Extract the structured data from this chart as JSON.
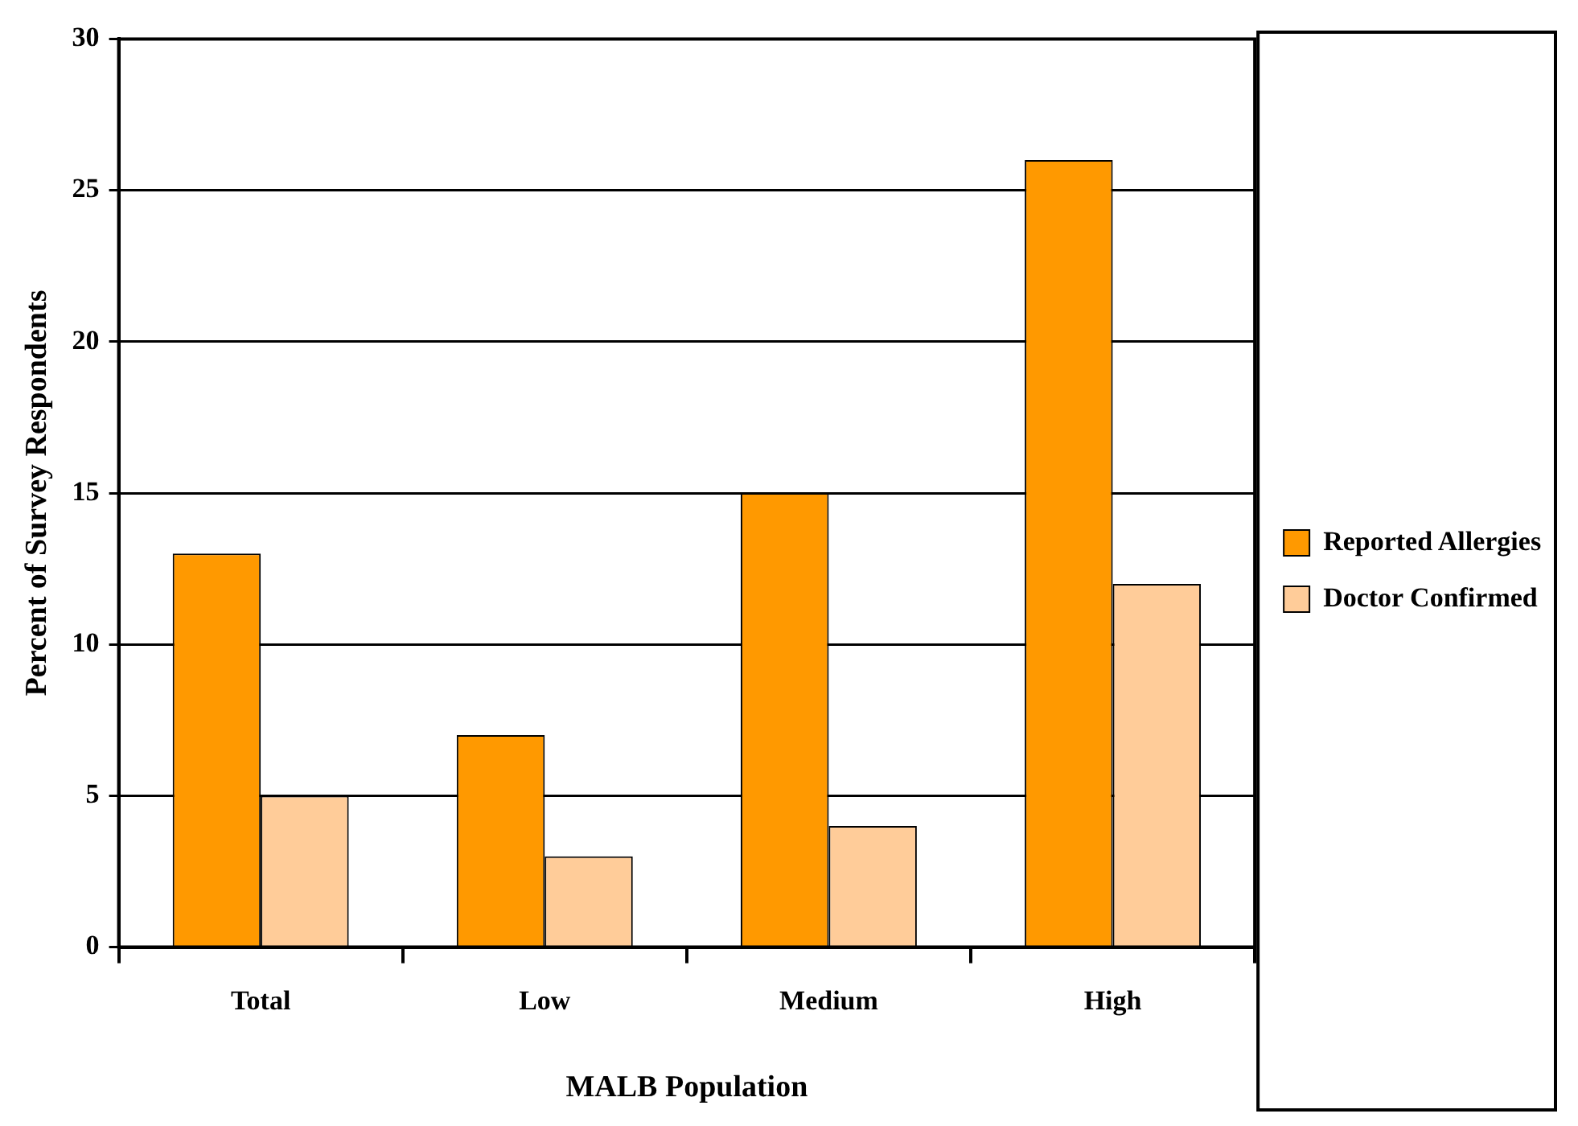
{
  "chart_data": {
    "type": "bar",
    "xlabel": "MALB Population",
    "ylabel": "Percent of Survey Respondents",
    "categories": [
      "Total",
      "Low",
      "Medium",
      "High"
    ],
    "series": [
      {
        "name": "Reported Allergies",
        "color": "#ff9900",
        "values": [
          13,
          7,
          15,
          26
        ]
      },
      {
        "name": "Doctor Confirmed",
        "color": "#ffcc99",
        "values": [
          5,
          3,
          4,
          12
        ]
      }
    ],
    "ylim": [
      0,
      30
    ],
    "yticks": [
      0,
      5,
      10,
      15,
      20,
      25,
      30
    ],
    "grid": "y",
    "legend": "right"
  }
}
